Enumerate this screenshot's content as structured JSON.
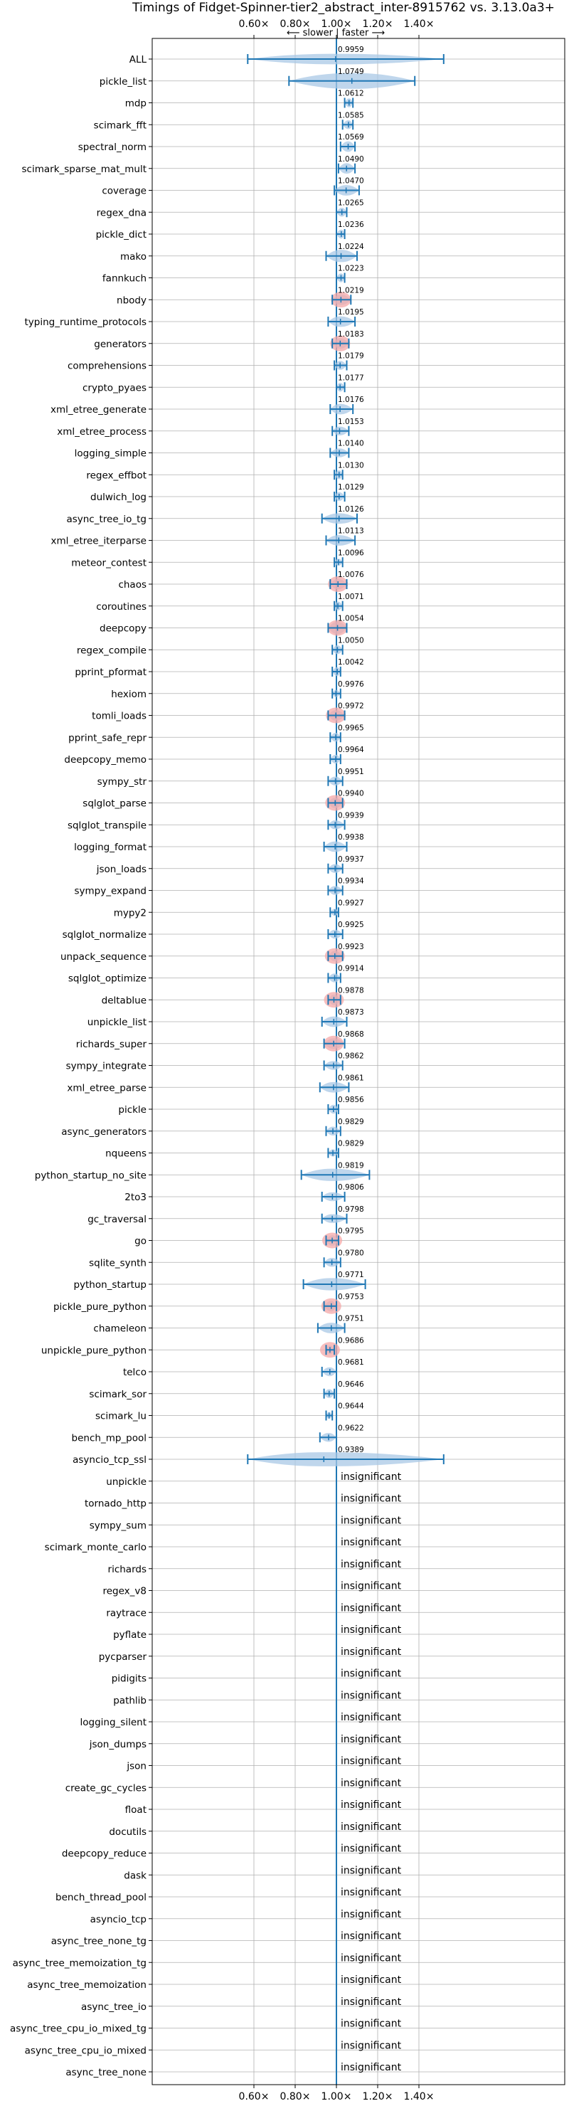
{
  "chart_data": {
    "type": "violin",
    "title": "Timings of Fidget-Spinner-tier2_abstract_inter-8915762 vs. 3.13.0a3+",
    "direction_label": "⟵ slower | faster ⟶",
    "xlim": [
      0.52,
      1.55
    ],
    "xticks": [
      0.6,
      0.8,
      1.0,
      1.2,
      1.4
    ],
    "xtick_labels": [
      "0.60×",
      "0.80×",
      "1.00×",
      "1.20×",
      "1.40×"
    ],
    "reference_line": 1.0,
    "insignificant_label": "insignificant",
    "colors": {
      "violin": "#a9c8e6",
      "line": "#1f77b4",
      "highlight": "#f4a8a8",
      "grid": "#b0b0b0"
    },
    "benchmarks": [
      {
        "name": "ALL",
        "value": 0.9959,
        "min": 0.57,
        "max": 1.52,
        "width": 0.6
      },
      {
        "name": "pickle_list",
        "value": 1.0749,
        "min": 0.77,
        "max": 1.38,
        "width": 0.9
      },
      {
        "name": "mdp",
        "value": 1.0612,
        "min": 1.04,
        "max": 1.08,
        "width": 0.5
      },
      {
        "name": "scimark_fft",
        "value": 1.0585,
        "min": 1.03,
        "max": 1.08,
        "width": 0.5
      },
      {
        "name": "spectral_norm",
        "value": 1.0569,
        "min": 1.02,
        "max": 1.09,
        "width": 0.6
      },
      {
        "name": "scimark_sparse_mat_mult",
        "value": 1.049,
        "min": 1.01,
        "max": 1.09,
        "width": 0.6
      },
      {
        "name": "coverage",
        "value": 1.047,
        "min": 0.99,
        "max": 1.11,
        "width": 0.6
      },
      {
        "name": "regex_dna",
        "value": 1.0265,
        "min": 1.0,
        "max": 1.05,
        "width": 0.5
      },
      {
        "name": "pickle_dict",
        "value": 1.0236,
        "min": 1.0,
        "max": 1.04,
        "width": 0.5
      },
      {
        "name": "mako",
        "value": 1.0224,
        "min": 0.95,
        "max": 1.1,
        "width": 0.7
      },
      {
        "name": "fannkuch",
        "value": 1.0223,
        "min": 1.0,
        "max": 1.04,
        "width": 0.5
      },
      {
        "name": "nbody",
        "value": 1.0219,
        "min": 0.98,
        "max": 1.07,
        "width": 0.6,
        "highlight": true
      },
      {
        "name": "typing_runtime_protocols",
        "value": 1.0195,
        "min": 0.96,
        "max": 1.09,
        "width": 0.6
      },
      {
        "name": "generators",
        "value": 1.0183,
        "min": 0.98,
        "max": 1.06,
        "width": 0.6,
        "highlight": true
      },
      {
        "name": "comprehensions",
        "value": 1.0179,
        "min": 0.99,
        "max": 1.05,
        "width": 0.5
      },
      {
        "name": "crypto_pyaes",
        "value": 1.0177,
        "min": 1.0,
        "max": 1.04,
        "width": 0.5
      },
      {
        "name": "xml_etree_generate",
        "value": 1.0176,
        "min": 0.97,
        "max": 1.08,
        "width": 0.6
      },
      {
        "name": "xml_etree_process",
        "value": 1.0153,
        "min": 0.98,
        "max": 1.06,
        "width": 0.5
      },
      {
        "name": "logging_simple",
        "value": 1.014,
        "min": 0.97,
        "max": 1.06,
        "width": 0.5
      },
      {
        "name": "regex_effbot",
        "value": 1.013,
        "min": 0.99,
        "max": 1.03,
        "width": 0.5
      },
      {
        "name": "dulwich_log",
        "value": 1.0129,
        "min": 0.99,
        "max": 1.04,
        "width": 0.5
      },
      {
        "name": "async_tree_io_tg",
        "value": 1.0126,
        "min": 0.93,
        "max": 1.1,
        "width": 0.6
      },
      {
        "name": "xml_etree_iterparse",
        "value": 1.0113,
        "min": 0.95,
        "max": 1.09,
        "width": 0.6
      },
      {
        "name": "meteor_contest",
        "value": 1.0096,
        "min": 0.99,
        "max": 1.03,
        "width": 0.4
      },
      {
        "name": "chaos",
        "value": 1.0076,
        "min": 0.97,
        "max": 1.05,
        "width": 0.6,
        "highlight": true
      },
      {
        "name": "coroutines",
        "value": 1.0071,
        "min": 0.99,
        "max": 1.03,
        "width": 0.5
      },
      {
        "name": "deepcopy",
        "value": 1.0054,
        "min": 0.96,
        "max": 1.05,
        "width": 0.7,
        "highlight": true
      },
      {
        "name": "regex_compile",
        "value": 1.005,
        "min": 0.98,
        "max": 1.03,
        "width": 0.5
      },
      {
        "name": "pprint_pformat",
        "value": 1.0042,
        "min": 0.98,
        "max": 1.02,
        "width": 0.5
      },
      {
        "name": "hexiom",
        "value": 0.9976,
        "min": 0.98,
        "max": 1.02,
        "width": 0.4
      },
      {
        "name": "tomli_loads",
        "value": 0.9972,
        "min": 0.96,
        "max": 1.04,
        "width": 0.6,
        "highlight": true
      },
      {
        "name": "pprint_safe_repr",
        "value": 0.9965,
        "min": 0.97,
        "max": 1.02,
        "width": 0.5
      },
      {
        "name": "deepcopy_memo",
        "value": 0.9964,
        "min": 0.97,
        "max": 1.02,
        "width": 0.5
      },
      {
        "name": "sympy_str",
        "value": 0.9951,
        "min": 0.96,
        "max": 1.03,
        "width": 0.5
      },
      {
        "name": "sqlglot_parse",
        "value": 0.994,
        "min": 0.96,
        "max": 1.03,
        "width": 0.6,
        "highlight": true
      },
      {
        "name": "sqlglot_transpile",
        "value": 0.9939,
        "min": 0.96,
        "max": 1.04,
        "width": 0.5
      },
      {
        "name": "logging_format",
        "value": 0.9938,
        "min": 0.94,
        "max": 1.05,
        "width": 0.6
      },
      {
        "name": "json_loads",
        "value": 0.9937,
        "min": 0.96,
        "max": 1.03,
        "width": 0.5
      },
      {
        "name": "sympy_expand",
        "value": 0.9934,
        "min": 0.96,
        "max": 1.03,
        "width": 0.5
      },
      {
        "name": "mypy2",
        "value": 0.9927,
        "min": 0.97,
        "max": 1.01,
        "width": 0.4
      },
      {
        "name": "sqlglot_normalize",
        "value": 0.9925,
        "min": 0.96,
        "max": 1.03,
        "width": 0.5
      },
      {
        "name": "unpack_sequence",
        "value": 0.9923,
        "min": 0.96,
        "max": 1.03,
        "width": 0.6,
        "highlight": true
      },
      {
        "name": "sqlglot_optimize",
        "value": 0.9914,
        "min": 0.96,
        "max": 1.02,
        "width": 0.5
      },
      {
        "name": "deltablue",
        "value": 0.9878,
        "min": 0.96,
        "max": 1.02,
        "width": 0.6,
        "highlight": true
      },
      {
        "name": "unpickle_list",
        "value": 0.9873,
        "min": 0.93,
        "max": 1.05,
        "width": 0.6
      },
      {
        "name": "richards_super",
        "value": 0.9868,
        "min": 0.94,
        "max": 1.04,
        "width": 0.6,
        "highlight": true
      },
      {
        "name": "sympy_integrate",
        "value": 0.9862,
        "min": 0.94,
        "max": 1.03,
        "width": 0.5
      },
      {
        "name": "xml_etree_parse",
        "value": 0.9861,
        "min": 0.92,
        "max": 1.06,
        "width": 0.6
      },
      {
        "name": "pickle",
        "value": 0.9856,
        "min": 0.96,
        "max": 1.01,
        "width": 0.5
      },
      {
        "name": "async_generators",
        "value": 0.9829,
        "min": 0.95,
        "max": 1.02,
        "width": 0.5
      },
      {
        "name": "nqueens",
        "value": 0.9829,
        "min": 0.96,
        "max": 1.01,
        "width": 0.4
      },
      {
        "name": "python_startup_no_site",
        "value": 0.9819,
        "min": 0.83,
        "max": 1.16,
        "width": 0.7
      },
      {
        "name": "2to3",
        "value": 0.9806,
        "min": 0.93,
        "max": 1.04,
        "width": 0.5
      },
      {
        "name": "gc_traversal",
        "value": 0.9798,
        "min": 0.93,
        "max": 1.05,
        "width": 0.5
      },
      {
        "name": "go",
        "value": 0.9795,
        "min": 0.95,
        "max": 1.01,
        "width": 0.6,
        "highlight": true
      },
      {
        "name": "sqlite_synth",
        "value": 0.978,
        "min": 0.94,
        "max": 1.02,
        "width": 0.5
      },
      {
        "name": "python_startup",
        "value": 0.9771,
        "min": 0.84,
        "max": 1.14,
        "width": 0.7
      },
      {
        "name": "pickle_pure_python",
        "value": 0.9753,
        "min": 0.94,
        "max": 1.0,
        "width": 0.6,
        "highlight": true
      },
      {
        "name": "chameleon",
        "value": 0.9751,
        "min": 0.91,
        "max": 1.04,
        "width": 0.6
      },
      {
        "name": "unpickle_pure_python",
        "value": 0.9686,
        "min": 0.95,
        "max": 0.99,
        "width": 0.5,
        "highlight": true
      },
      {
        "name": "telco",
        "value": 0.9681,
        "min": 0.93,
        "max": 1.0,
        "width": 0.5
      },
      {
        "name": "scimark_sor",
        "value": 0.9646,
        "min": 0.94,
        "max": 0.99,
        "width": 0.5
      },
      {
        "name": "scimark_lu",
        "value": 0.9644,
        "min": 0.95,
        "max": 0.98,
        "width": 0.4
      },
      {
        "name": "bench_mp_pool",
        "value": 0.9622,
        "min": 0.92,
        "max": 1.0,
        "width": 0.5
      },
      {
        "name": "asyncio_tcp_ssl",
        "value": 0.9389,
        "min": 0.57,
        "max": 1.52,
        "width": 0.8
      },
      {
        "name": "unpickle",
        "insignificant": true
      },
      {
        "name": "tornado_http",
        "insignificant": true
      },
      {
        "name": "sympy_sum",
        "insignificant": true
      },
      {
        "name": "scimark_monte_carlo",
        "insignificant": true
      },
      {
        "name": "richards",
        "insignificant": true
      },
      {
        "name": "regex_v8",
        "insignificant": true
      },
      {
        "name": "raytrace",
        "insignificant": true
      },
      {
        "name": "pyflate",
        "insignificant": true
      },
      {
        "name": "pycparser",
        "insignificant": true
      },
      {
        "name": "pidigits",
        "insignificant": true
      },
      {
        "name": "pathlib",
        "insignificant": true
      },
      {
        "name": "logging_silent",
        "insignificant": true
      },
      {
        "name": "json_dumps",
        "insignificant": true
      },
      {
        "name": "json",
        "insignificant": true
      },
      {
        "name": "create_gc_cycles",
        "insignificant": true
      },
      {
        "name": "float",
        "insignificant": true
      },
      {
        "name": "docutils",
        "insignificant": true
      },
      {
        "name": "deepcopy_reduce",
        "insignificant": true
      },
      {
        "name": "dask",
        "insignificant": true
      },
      {
        "name": "bench_thread_pool",
        "insignificant": true
      },
      {
        "name": "asyncio_tcp",
        "insignificant": true
      },
      {
        "name": "async_tree_none_tg",
        "insignificant": true
      },
      {
        "name": "async_tree_memoization_tg",
        "insignificant": true
      },
      {
        "name": "async_tree_memoization",
        "insignificant": true
      },
      {
        "name": "async_tree_io",
        "insignificant": true
      },
      {
        "name": "async_tree_cpu_io_mixed_tg",
        "insignificant": true
      },
      {
        "name": "async_tree_cpu_io_mixed",
        "insignificant": true
      },
      {
        "name": "async_tree_none",
        "insignificant": true
      }
    ]
  }
}
